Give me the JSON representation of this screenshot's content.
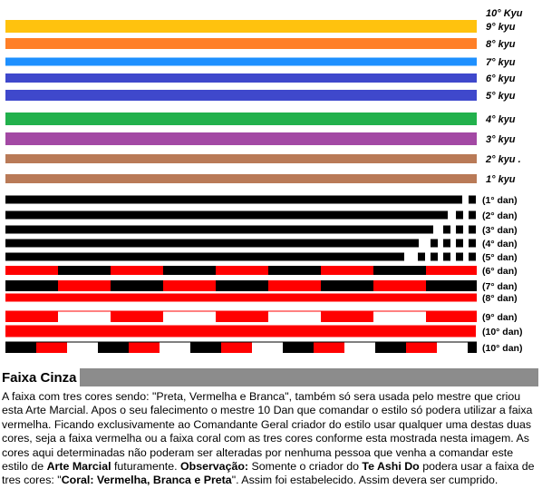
{
  "belts": [
    {
      "label": "10° Kyu",
      "pattern": "none",
      "colors": []
    },
    {
      "label": "9° kyu",
      "pattern": "solid",
      "colors": [
        "#ffc20e"
      ]
    },
    {
      "label": "8° kyu",
      "pattern": "solid",
      "colors": [
        "#ff7f27"
      ]
    },
    {
      "label": "7° kyu",
      "pattern": "solid",
      "colors": [
        "#1e90ff"
      ]
    },
    {
      "label": "6° kyu",
      "pattern": "solid",
      "colors": [
        "#3f48cc"
      ]
    },
    {
      "label": "5° kyu",
      "pattern": "solid",
      "colors": [
        "#3f48cc"
      ]
    },
    {
      "label": "4° kyu",
      "pattern": "solid",
      "colors": [
        "#22b14c"
      ]
    },
    {
      "label": "3° kyu",
      "pattern": "solid",
      "colors": [
        "#a349a4"
      ]
    },
    {
      "label": "2° kyu .",
      "pattern": "solid",
      "colors": [
        "#b97a57"
      ]
    },
    {
      "label": "1° kyu",
      "pattern": "solid",
      "colors": [
        "#b97a57"
      ]
    },
    {
      "label": "(1° dan)",
      "pattern": "black-stripes",
      "stripes": 1,
      "colors": [
        "#000000"
      ]
    },
    {
      "label": "(2° dan)",
      "pattern": "black-stripes",
      "stripes": 2,
      "colors": [
        "#000000"
      ]
    },
    {
      "label": "(3° dan)",
      "pattern": "black-stripes",
      "stripes": 3,
      "colors": [
        "#000000"
      ]
    },
    {
      "label": "(4° dan)",
      "pattern": "black-stripes",
      "stripes": 4,
      "colors": [
        "#000000"
      ]
    },
    {
      "label": "(5° dan)",
      "pattern": "black-stripes",
      "stripes": 5,
      "colors": [
        "#000000"
      ]
    },
    {
      "label": "(6° dan)",
      "pattern": "coral",
      "colors": [
        "#ff0000",
        "#000000"
      ]
    },
    {
      "label": "(7° dan)",
      "pattern": "coral",
      "colors": [
        "#000000",
        "#ff0000"
      ]
    },
    {
      "label": "(8° dan)",
      "pattern": "solid",
      "colors": [
        "#ff0000"
      ]
    },
    {
      "label": "(9° dan)",
      "pattern": "coral",
      "colors": [
        "#ff0000",
        "#ffffff"
      ]
    },
    {
      "label": "(10° dan)",
      "pattern": "solid",
      "colors": [
        "#ff0000"
      ]
    },
    {
      "label": "(10° dan)",
      "pattern": "coral",
      "colors": [
        "#000000",
        "#ff0000",
        "#ffffff"
      ]
    }
  ],
  "section": {
    "title": "Faixa Cinza",
    "title_bar_color": "#8c8c8c",
    "p1": "A faixa com tres cores sendo: \"Preta, Vermelha e Branca\", também só sera usada pelo mestre que criou esta Arte Marcial. Apos o seu falecimento o mestre 10 Dan que comandar o estilo só podera utilizar a faixa vermelha. Ficando exclusivamente ao Comandante Geral criador do estilo usar qualquer uma destas duas cores, seja a faixa vermelha ou a faixa coral com as tres cores conforme esta mostrada nesta imagem. As cores aqui determinadas não poderam ser alteradas por nenhuma pessoa que venha a comandar este estilo de ",
    "b1": "Arte Marcial",
    "p2": " futuramente. ",
    "b2": "Observação:",
    "p3": " Somente o criador do ",
    "b3": "Te Ashi Do",
    "p4": " podera usar a faixa de tres cores: \"",
    "b4": "Coral: Vermelha, Branca e Preta",
    "p5": "\". Assim foi estabelecido. Assim  devera ser cumprido."
  }
}
